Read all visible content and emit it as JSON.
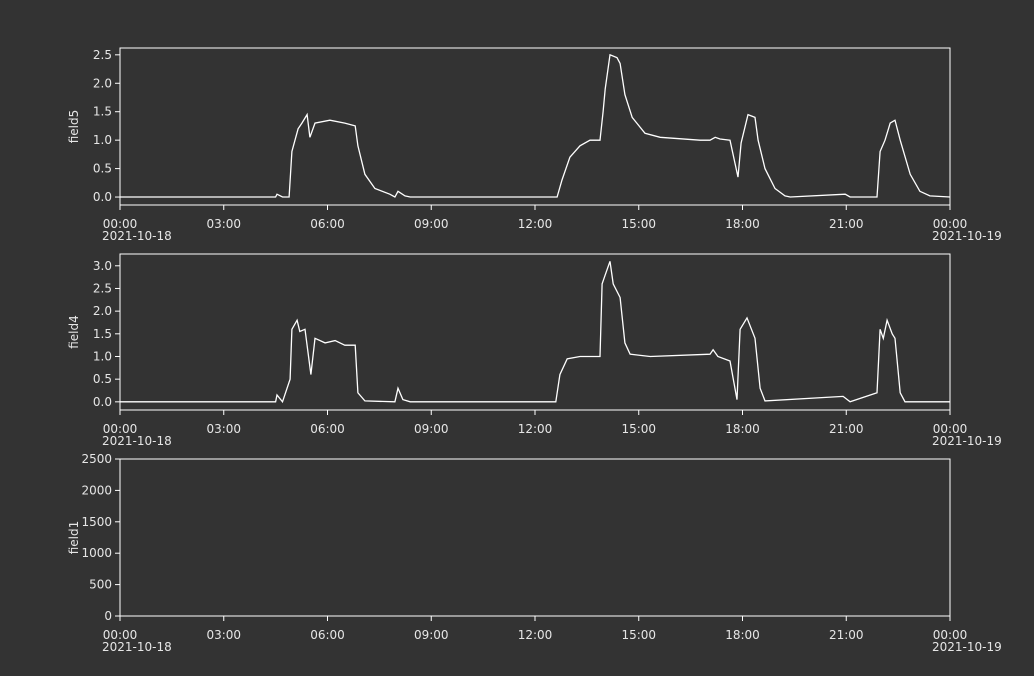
{
  "chart_data": [
    {
      "type": "line",
      "x": [
        0,
        4.5,
        4.54,
        4.7,
        4.89,
        4.97,
        5.15,
        5.26,
        5.41,
        5.49,
        5.64,
        6.07,
        6.5,
        6.8,
        6.88,
        7.08,
        7.37,
        7.8,
        7.95,
        8.04,
        8.24,
        8.39,
        12.64,
        12.78,
        13.01,
        13.3,
        13.59,
        13.88,
        13.97,
        14.03,
        14.17,
        14.37,
        14.46,
        14.6,
        14.81,
        15.18,
        15.62,
        16.77,
        17.06,
        17.21,
        17.35,
        17.64,
        17.78,
        17.87,
        17.96,
        18.16,
        18.36,
        18.45,
        18.65,
        18.94,
        19.23,
        19.38,
        20.97,
        21.11,
        21.89,
        21.98,
        22.12,
        22.27,
        22.41,
        22.56,
        22.85,
        23.13,
        23.42,
        24
      ],
      "series": [
        {
          "name": "field5",
          "color": "#ffffff",
          "values": [
            0,
            0,
            0.05,
            0,
            0,
            0.8,
            1.2,
            1.3,
            1.45,
            1.05,
            1.3,
            1.35,
            1.3,
            1.25,
            0.9,
            0.4,
            0.15,
            0.05,
            0,
            0.1,
            0.02,
            0,
            0,
            0.3,
            0.7,
            0.9,
            1.0,
            1.0,
            1.5,
            1.9,
            2.5,
            2.45,
            2.35,
            1.8,
            1.4,
            1.12,
            1.05,
            1.0,
            1.0,
            1.05,
            1.02,
            1.0,
            0.6,
            0.35,
            0.95,
            1.45,
            1.4,
            1.0,
            0.5,
            0.15,
            0.02,
            0,
            0.05,
            0,
            0,
            0.8,
            1.0,
            1.3,
            1.35,
            1.0,
            0.4,
            0.1,
            0.02,
            0
          ]
        }
      ],
      "xlim": [
        0,
        24
      ],
      "xticks": [
        {
          "value": 0,
          "label": "00:00",
          "date": "2021-10-18"
        },
        {
          "value": 3,
          "label": "03:00"
        },
        {
          "value": 6,
          "label": "06:00"
        },
        {
          "value": 9,
          "label": "09:00"
        },
        {
          "value": 12,
          "label": "12:00"
        },
        {
          "value": 15,
          "label": "15:00"
        },
        {
          "value": 18,
          "label": "18:00"
        },
        {
          "value": 21,
          "label": "21:00"
        },
        {
          "value": 24,
          "label": "00:00",
          "date": "2021-10-19"
        }
      ],
      "ylim": [
        -0.14,
        2.62
      ],
      "yticks": [
        {
          "value": 0,
          "label": "0.0"
        },
        0.5,
        {
          "value": 1,
          "label": "1.0"
        },
        1.5,
        {
          "value": 2,
          "label": "2.0"
        },
        2.5
      ]
    },
    {
      "type": "line",
      "x": [
        0,
        4.5,
        4.54,
        4.7,
        4.92,
        4.97,
        5.12,
        5.2,
        5.35,
        5.52,
        5.64,
        5.93,
        6.22,
        6.5,
        6.8,
        6.88,
        7.08,
        7.95,
        8.04,
        8.18,
        8.39,
        12.6,
        12.72,
        12.93,
        13.3,
        13.88,
        13.94,
        14.03,
        14.17,
        14.26,
        14.46,
        14.6,
        14.75,
        15.33,
        17.06,
        17.15,
        17.29,
        17.64,
        17.84,
        17.93,
        18.13,
        18.36,
        18.51,
        18.65,
        20.91,
        21.11,
        21.89,
        21.98,
        22.07,
        22.18,
        22.33,
        22.41,
        22.56,
        22.7,
        24
      ],
      "series": [
        {
          "name": "field4",
          "color": "#ffffff",
          "values": [
            0,
            0,
            0.15,
            0,
            0.5,
            1.6,
            1.8,
            1.55,
            1.6,
            0.6,
            1.4,
            1.3,
            1.35,
            1.25,
            1.25,
            0.2,
            0.02,
            0,
            0.3,
            0.05,
            0,
            0,
            0.6,
            0.95,
            1.0,
            1.0,
            2.6,
            2.8,
            3.1,
            2.6,
            2.3,
            1.3,
            1.05,
            1.0,
            1.05,
            1.15,
            1.0,
            0.9,
            0.05,
            1.6,
            1.85,
            1.4,
            0.3,
            0.02,
            0.12,
            0,
            0.2,
            1.6,
            1.4,
            1.8,
            1.5,
            1.4,
            0.2,
            0,
            0
          ]
        }
      ],
      "xlim": [
        0,
        24
      ],
      "xticks": [
        {
          "value": 0,
          "label": "00:00",
          "date": "2021-10-18"
        },
        {
          "value": 3,
          "label": "03:00"
        },
        {
          "value": 6,
          "label": "06:00"
        },
        {
          "value": 9,
          "label": "09:00"
        },
        {
          "value": 12,
          "label": "12:00"
        },
        {
          "value": 15,
          "label": "15:00"
        },
        {
          "value": 18,
          "label": "18:00"
        },
        {
          "value": 21,
          "label": "21:00"
        },
        {
          "value": 24,
          "label": "00:00",
          "date": "2021-10-19"
        }
      ],
      "ylim": [
        -0.18,
        3.26
      ],
      "yticks": [
        {
          "value": 0,
          "label": "0.0"
        },
        0.5,
        {
          "value": 1,
          "label": "1.0"
        },
        1.5,
        {
          "value": 2,
          "label": "2.0"
        },
        2.5,
        {
          "value": 3,
          "label": "3.0"
        }
      ]
    },
    {
      "type": "line",
      "x": [],
      "series": [
        {
          "name": "field1",
          "color": "#ffffff",
          "values": []
        }
      ],
      "xlim": [
        0,
        24
      ],
      "xticks": [
        {
          "value": 0,
          "label": "00:00",
          "date": "2021-10-18"
        },
        {
          "value": 3,
          "label": "03:00"
        },
        {
          "value": 6,
          "label": "06:00"
        },
        {
          "value": 9,
          "label": "09:00"
        },
        {
          "value": 12,
          "label": "12:00"
        },
        {
          "value": 15,
          "label": "15:00"
        },
        {
          "value": 18,
          "label": "18:00"
        },
        {
          "value": 21,
          "label": "21:00"
        },
        {
          "value": 24,
          "label": "00:00",
          "date": "2021-10-19"
        }
      ],
      "ylim": [
        0,
        2500
      ],
      "yticks": [
        0,
        500,
        1000,
        1500,
        2000,
        2500
      ]
    }
  ]
}
